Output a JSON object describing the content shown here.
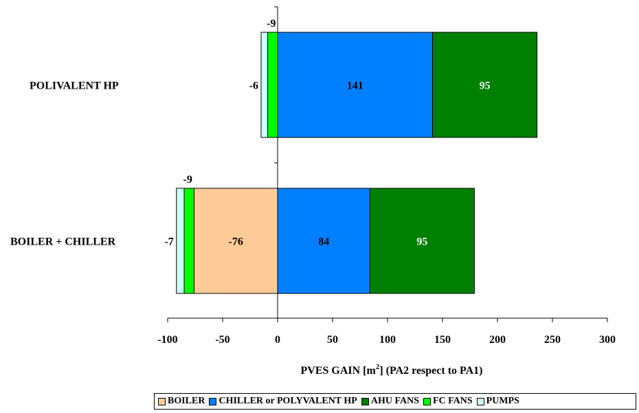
{
  "chart_data": {
    "type": "bar",
    "orientation": "horizontal",
    "stacked": true,
    "categories": [
      "POLIVALENT HP",
      "BOILER + CHILLER"
    ],
    "series": [
      {
        "name": "BOILER",
        "color": "#FFCC99",
        "values": [
          0,
          -76
        ]
      },
      {
        "name": "CHILLER or POLYVALENT HP",
        "color": "#0080FF",
        "values": [
          141,
          84
        ]
      },
      {
        "name": "AHU FANS",
        "color": "#008000",
        "values": [
          95,
          95
        ]
      },
      {
        "name": "FC FANS",
        "color": "#00FF00",
        "values": [
          -9,
          -9
        ]
      },
      {
        "name": "PUMPS",
        "color": "#CCFFFF",
        "values": [
          -6,
          -7
        ]
      }
    ],
    "data_labels": [
      {
        "category": "POLIVALENT HP",
        "series": "CHILLER or POLYVALENT HP",
        "text": "141",
        "color": "#000000"
      },
      {
        "category": "POLIVALENT HP",
        "series": "AHU FANS",
        "text": "95",
        "color": "#ffffff"
      },
      {
        "category": "POLIVALENT HP",
        "series": "FC FANS",
        "text": "-9",
        "color": "#000000",
        "placement": "above"
      },
      {
        "category": "POLIVALENT HP",
        "series": "PUMPS",
        "text": "-6",
        "color": "#000000",
        "placement": "left"
      },
      {
        "category": "BOILER + CHILLER",
        "series": "BOILER",
        "text": "-76",
        "color": "#000000"
      },
      {
        "category": "BOILER + CHILLER",
        "series": "CHILLER or POLYVALENT HP",
        "text": "84",
        "color": "#000000"
      },
      {
        "category": "BOILER + CHILLER",
        "series": "AHU FANS",
        "text": "95",
        "color": "#ffffff"
      },
      {
        "category": "BOILER + CHILLER",
        "series": "FC FANS",
        "text": "-9",
        "color": "#000000",
        "placement": "above"
      },
      {
        "category": "BOILER + CHILLER",
        "series": "PUMPS",
        "text": "-7",
        "color": "#000000",
        "placement": "left"
      }
    ],
    "xlim": [
      -100,
      300
    ],
    "xticks": [
      -100,
      -50,
      0,
      50,
      100,
      150,
      200,
      250,
      300
    ],
    "xtick_labels": [
      "-100",
      "-50",
      "0",
      "50",
      "100",
      "150",
      "200",
      "250",
      "300"
    ],
    "xlabel_text": "PVES GAIN [m",
    "xlabel_sup": "2",
    "xlabel_suffix": "] (PA2 respect to PA1)",
    "title": "",
    "grid": false,
    "legend_position": "bottom-right",
    "legend_order": [
      "BOILER",
      "CHILLER or POLYVALENT HP",
      "AHU FANS",
      "FC FANS",
      "PUMPS"
    ]
  }
}
